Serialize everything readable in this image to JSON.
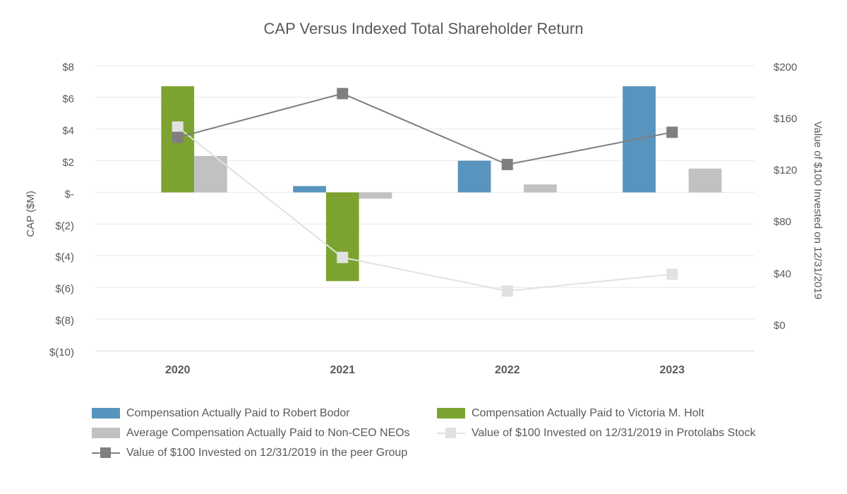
{
  "chart_data": {
    "type": "combo-bar-line",
    "title": "CAP Versus Indexed Total Shareholder Return",
    "categories": [
      "2020",
      "2021",
      "2022",
      "2023"
    ],
    "bar_series": [
      {
        "key": "robert-bodor",
        "name": "Compensation Actually Paid to Robert Bodor",
        "color": "#5894be",
        "axis": "left",
        "values": [
          null,
          0.4,
          2.0,
          6.7
        ]
      },
      {
        "key": "victoria-holt",
        "name": "Compensation Actually Paid to Victoria M. Holt",
        "color": "#7ca32f",
        "axis": "left",
        "values": [
          6.7,
          -5.6,
          null,
          null
        ]
      },
      {
        "key": "non-ceo-neos",
        "name": "Average Compensation Actually Paid to Non-CEO NEOs",
        "color": "#c1c1c1",
        "axis": "left",
        "values": [
          2.3,
          -0.4,
          0.5,
          1.5
        ]
      }
    ],
    "line_series": [
      {
        "key": "protolabs-stock",
        "name": "Value of $100 Invested on 12/31/2019 in Protolabs Stock",
        "color": "#e1e1e1",
        "marker": "square",
        "axis": "right",
        "values": [
          154,
          53,
          27,
          40
        ]
      },
      {
        "key": "peer-group",
        "name": "Value of $100 Invested on 12/31/2019 in the peer Group",
        "color": "#7f7f7f",
        "marker": "square",
        "axis": "right",
        "values": [
          146,
          180,
          125,
          150
        ]
      }
    ],
    "left_axis": {
      "label": "CAP ($M)",
      "range": [
        -10,
        8
      ],
      "tick_labels": [
        "$8",
        "$6",
        "$4",
        "$2",
        "$-",
        "$(2)",
        "$(4)",
        "$(6)",
        "$(8)",
        "$(10)"
      ],
      "tick_values": [
        8,
        6,
        4,
        2,
        0,
        -2,
        -4,
        -6,
        -8,
        -10
      ]
    },
    "right_axis": {
      "label": "Value of $100 Invested on 12/31/2019",
      "range": [
        0,
        200
      ],
      "tick_labels": [
        "$200",
        "$160",
        "$120",
        "$80",
        "$40",
        "$0"
      ],
      "tick_values": [
        200,
        160,
        120,
        80,
        40,
        0
      ]
    },
    "grid": true,
    "legend_position": "bottom"
  },
  "legend": {
    "left_column": [
      {
        "label": "Compensation Actually Paid to Robert Bodor",
        "swatch": "bar",
        "color": "#5894be"
      },
      {
        "label": "Average Compensation Actually Paid to Non-CEO NEOs",
        "swatch": "bar",
        "color": "#c1c1c1"
      },
      {
        "label": "Value of $100 Invested on 12/31/2019 in the peer Group",
        "swatch": "line",
        "color": "#7f7f7f"
      }
    ],
    "right_column": [
      {
        "label": "Compensation Actually Paid to Victoria M. Holt",
        "swatch": "bar",
        "color": "#7ca32f"
      },
      {
        "label": "Value of $100 Invested on 12/31/2019 in Protolabs Stock",
        "swatch": "line",
        "color": "#e1e1e1"
      }
    ]
  },
  "colors": {
    "gridline": "#e8e8e8",
    "axis_line": "#d5d5d5",
    "text": "#595959"
  }
}
